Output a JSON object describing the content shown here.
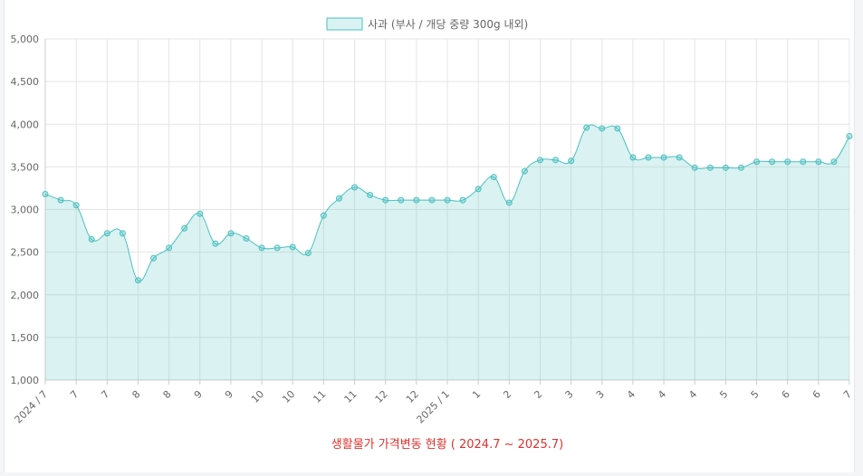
{
  "chart_data": {
    "type": "area",
    "title": "",
    "caption": "생활물가 가격변동 현황 ( 2024.7 ~ 2025.7)",
    "xlabel": "",
    "ylabel": "",
    "ylim": [
      1000,
      5000
    ],
    "y_ticks": [
      "5,000",
      "4,500",
      "4,000",
      "3,500",
      "3,000",
      "2,500",
      "2,000",
      "1,500",
      "1,000"
    ],
    "grid": true,
    "legend_position": "top-center",
    "x": [
      "2024 / 7",
      "7",
      "7",
      "7",
      "7",
      "7",
      "8",
      "8",
      "8",
      "8",
      "9",
      "9",
      "9",
      "9",
      "10",
      "10",
      "10",
      "10",
      "10",
      "11",
      "11",
      "11",
      "11",
      "12",
      "12",
      "12",
      "12",
      "1",
      "1",
      "1",
      "1",
      "2",
      "2",
      "2",
      "2",
      "3",
      "3",
      "3",
      "3",
      "4",
      "4",
      "4",
      "4",
      "5",
      "5",
      "5",
      "5",
      "6",
      "6",
      "6",
      "6",
      "6",
      "7"
    ],
    "x_tick_labels": [
      "2024 / 7",
      "7",
      "7",
      "8",
      "8",
      "9",
      "9",
      "10",
      "10",
      "11",
      "11",
      "12",
      "12",
      "2025 / 1",
      "1",
      "2",
      "2",
      "3",
      "3",
      "4",
      "4",
      "4",
      "5",
      "5",
      "6",
      "6",
      "7"
    ],
    "series": [
      {
        "name": "사과 (부사 / 개당 중량 300g 내외)",
        "color": "#4bc0c0",
        "fill": "rgba(75,192,192,0.2)",
        "values": [
          3180,
          3110,
          3050,
          2650,
          2720,
          2720,
          2170,
          2430,
          2550,
          2780,
          2950,
          2600,
          2720,
          2660,
          2550,
          2550,
          2560,
          2490,
          2930,
          3130,
          3260,
          3170,
          3110,
          3110,
          3110,
          3110,
          3110,
          3110,
          3240,
          3380,
          3080,
          3450,
          3580,
          3580,
          3570,
          3960,
          3950,
          3950,
          3610,
          3610,
          3610,
          3610,
          3490,
          3490,
          3490,
          3490,
          3560,
          3560,
          3560,
          3560,
          3560,
          3560,
          3860
        ]
      }
    ]
  }
}
